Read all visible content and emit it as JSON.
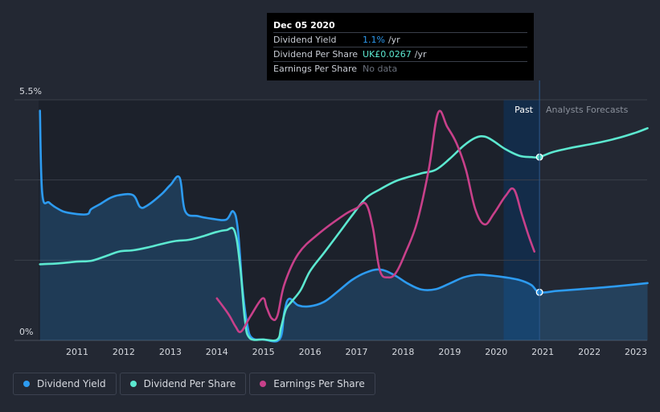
{
  "tooltip": {
    "date": "Dec 05 2020",
    "rows": [
      {
        "label": "Dividend Yield",
        "value": "1.1%",
        "unit": "/yr"
      },
      {
        "label": "Dividend Per Share",
        "value": "UK£0.0267",
        "unit": "/yr"
      },
      {
        "label": "Earnings Per Share",
        "value": "No data",
        "unit": ""
      }
    ]
  },
  "regions": {
    "past": "Past",
    "forecast": "Analysts Forecasts"
  },
  "legend": [
    {
      "label": "Dividend Yield",
      "color": "#2d9bf0"
    },
    {
      "label": "Dividend Per Share",
      "color": "#5ce8d0"
    },
    {
      "label": "Earnings Per Share",
      "color": "#c8408a"
    }
  ],
  "colors": {
    "background": "#232833",
    "past_band": "#1c212b",
    "highlight": "#0f2d52",
    "grid": "#3a3f4a",
    "yield": "#2d9bf0",
    "dps": "#5ce8d0",
    "eps": "#c8408a"
  },
  "chart_data": {
    "type": "line",
    "title": "",
    "xlabel": "",
    "ylabel": "",
    "x_ticks": [
      "2011",
      "2012",
      "2013",
      "2014",
      "2015",
      "2016",
      "2017",
      "2018",
      "2019",
      "2020",
      "2021",
      "2022",
      "2023"
    ],
    "y_ticks": [
      "0%",
      "5.5%"
    ],
    "xlim": [
      2010.17,
      2023.25
    ],
    "ylim": [
      0,
      5.5
    ],
    "past_region_start": 2020.16,
    "forecast_start": 2020.93,
    "grid": true,
    "legend_position": "bottom-left",
    "series": [
      {
        "name": "Dividend Yield",
        "key": "yield",
        "area": true,
        "points": [
          [
            2010.2,
            5.25
          ],
          [
            2010.25,
            3.35
          ],
          [
            2010.4,
            3.15
          ],
          [
            2010.6,
            3.0
          ],
          [
            2010.8,
            2.92
          ],
          [
            2011.2,
            2.88
          ],
          [
            2011.3,
            3.0
          ],
          [
            2011.5,
            3.12
          ],
          [
            2011.7,
            3.25
          ],
          [
            2011.9,
            3.32
          ],
          [
            2012.2,
            3.32
          ],
          [
            2012.35,
            3.05
          ],
          [
            2012.5,
            3.08
          ],
          [
            2012.8,
            3.33
          ],
          [
            2013.0,
            3.55
          ],
          [
            2013.2,
            3.72
          ],
          [
            2013.32,
            2.95
          ],
          [
            2013.6,
            2.84
          ],
          [
            2013.9,
            2.78
          ],
          [
            2014.2,
            2.76
          ],
          [
            2014.35,
            2.95
          ],
          [
            2014.45,
            2.55
          ],
          [
            2014.55,
            1.2
          ],
          [
            2014.65,
            0.38
          ],
          [
            2014.75,
            0.06
          ],
          [
            2015.0,
            0.02
          ],
          [
            2015.35,
            0.03
          ],
          [
            2015.45,
            0.65
          ],
          [
            2015.55,
            0.95
          ],
          [
            2015.75,
            0.8
          ],
          [
            2016.0,
            0.78
          ],
          [
            2016.3,
            0.88
          ],
          [
            2016.6,
            1.12
          ],
          [
            2016.9,
            1.38
          ],
          [
            2017.2,
            1.55
          ],
          [
            2017.5,
            1.62
          ],
          [
            2017.8,
            1.5
          ],
          [
            2018.1,
            1.3
          ],
          [
            2018.4,
            1.16
          ],
          [
            2018.7,
            1.17
          ],
          [
            2019.0,
            1.3
          ],
          [
            2019.3,
            1.44
          ],
          [
            2019.6,
            1.5
          ],
          [
            2019.9,
            1.48
          ],
          [
            2020.2,
            1.44
          ],
          [
            2020.5,
            1.38
          ],
          [
            2020.75,
            1.27
          ],
          [
            2020.93,
            1.1
          ],
          [
            2021.3,
            1.13
          ],
          [
            2021.8,
            1.17
          ],
          [
            2022.3,
            1.21
          ],
          [
            2022.8,
            1.26
          ],
          [
            2023.25,
            1.31
          ]
        ]
      },
      {
        "name": "Dividend Per Share",
        "key": "dps",
        "area": false,
        "points": [
          [
            2010.2,
            1.74
          ],
          [
            2010.6,
            1.76
          ],
          [
            2011.0,
            1.8
          ],
          [
            2011.3,
            1.82
          ],
          [
            2011.6,
            1.92
          ],
          [
            2011.9,
            2.03
          ],
          [
            2012.2,
            2.06
          ],
          [
            2012.5,
            2.12
          ],
          [
            2012.8,
            2.2
          ],
          [
            2013.1,
            2.27
          ],
          [
            2013.4,
            2.3
          ],
          [
            2013.7,
            2.38
          ],
          [
            2014.0,
            2.48
          ],
          [
            2014.2,
            2.52
          ],
          [
            2014.38,
            2.5
          ],
          [
            2014.5,
            1.7
          ],
          [
            2014.6,
            0.5
          ],
          [
            2014.7,
            0.06
          ],
          [
            2015.0,
            0.02
          ],
          [
            2015.3,
            0.02
          ],
          [
            2015.38,
            0.3
          ],
          [
            2015.48,
            0.7
          ],
          [
            2015.6,
            0.88
          ],
          [
            2015.8,
            1.15
          ],
          [
            2016.0,
            1.58
          ],
          [
            2016.3,
            2.0
          ],
          [
            2016.6,
            2.42
          ],
          [
            2016.9,
            2.85
          ],
          [
            2017.2,
            3.25
          ],
          [
            2017.5,
            3.45
          ],
          [
            2017.8,
            3.62
          ],
          [
            2018.0,
            3.7
          ],
          [
            2018.4,
            3.82
          ],
          [
            2018.7,
            3.9
          ],
          [
            2019.0,
            4.15
          ],
          [
            2019.3,
            4.45
          ],
          [
            2019.55,
            4.63
          ],
          [
            2019.75,
            4.66
          ],
          [
            2019.95,
            4.55
          ],
          [
            2020.2,
            4.37
          ],
          [
            2020.5,
            4.22
          ],
          [
            2020.75,
            4.19
          ],
          [
            2020.93,
            4.19
          ],
          [
            2021.2,
            4.3
          ],
          [
            2021.6,
            4.4
          ],
          [
            2022.1,
            4.5
          ],
          [
            2022.6,
            4.62
          ],
          [
            2023.0,
            4.75
          ],
          [
            2023.25,
            4.85
          ]
        ]
      },
      {
        "name": "Earnings Per Share",
        "key": "eps",
        "area": false,
        "points": [
          [
            2014.0,
            0.96
          ],
          [
            2014.25,
            0.6
          ],
          [
            2014.4,
            0.32
          ],
          [
            2014.52,
            0.2
          ],
          [
            2014.72,
            0.55
          ],
          [
            2014.98,
            0.96
          ],
          [
            2015.07,
            0.75
          ],
          [
            2015.18,
            0.5
          ],
          [
            2015.3,
            0.56
          ],
          [
            2015.45,
            1.28
          ],
          [
            2015.75,
            1.98
          ],
          [
            2016.2,
            2.45
          ],
          [
            2016.75,
            2.88
          ],
          [
            2017.0,
            3.02
          ],
          [
            2017.2,
            3.12
          ],
          [
            2017.35,
            2.58
          ],
          [
            2017.5,
            1.6
          ],
          [
            2017.68,
            1.44
          ],
          [
            2017.85,
            1.55
          ],
          [
            2018.05,
            2.0
          ],
          [
            2018.3,
            2.7
          ],
          [
            2018.55,
            3.9
          ],
          [
            2018.75,
            5.2
          ],
          [
            2018.95,
            4.88
          ],
          [
            2019.15,
            4.5
          ],
          [
            2019.35,
            3.9
          ],
          [
            2019.55,
            3.0
          ],
          [
            2019.75,
            2.65
          ],
          [
            2019.95,
            2.9
          ],
          [
            2020.2,
            3.3
          ],
          [
            2020.38,
            3.45
          ],
          [
            2020.55,
            2.88
          ],
          [
            2020.7,
            2.38
          ],
          [
            2020.82,
            2.03
          ]
        ]
      }
    ],
    "markers": [
      {
        "series": "dps",
        "x": 2020.93,
        "y": 4.19
      },
      {
        "series": "yield",
        "x": 2020.93,
        "y": 1.1
      }
    ]
  }
}
